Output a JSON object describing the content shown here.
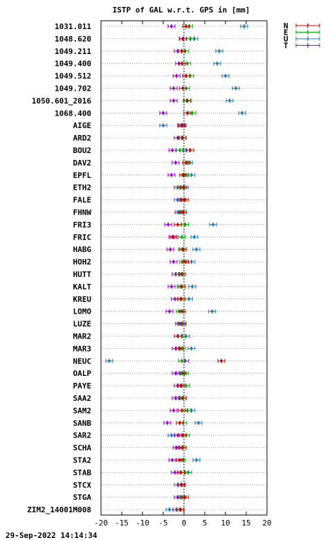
{
  "chart_data": {
    "type": "errorbar",
    "title": "ISTP of GAL w.r.t. GPS in [mm]",
    "timestamp": "29-Sep-2022 14:14:34",
    "xlim": [
      -20,
      20
    ],
    "xticks": [
      -20,
      -15,
      -10,
      -5,
      0,
      5,
      10,
      15,
      20
    ],
    "grid": "horizontal-dotted",
    "legend_position": "top-right",
    "series": [
      {
        "name": "N",
        "color": "#cc0000"
      },
      {
        "name": "E",
        "color": "#00aa00"
      },
      {
        "name": "U",
        "color": "#1f77b4"
      },
      {
        "name": "T",
        "color": "#9900cc"
      }
    ],
    "stations": [
      {
        "name": "1031.011",
        "N": 0.5,
        "E": 1.2,
        "U": 14.5,
        "T": -3.0
      },
      {
        "name": "1048.620",
        "N": -0.3,
        "E": 1.5,
        "U": 2.5,
        "T": -0.2
      },
      {
        "name": "1049.211",
        "N": -0.5,
        "E": 0.3,
        "U": 8.5,
        "T": -1.5
      },
      {
        "name": "1049.400",
        "N": -0.5,
        "E": 0.8,
        "U": 8.0,
        "T": -1.2
      },
      {
        "name": "1049.512",
        "N": 0.5,
        "E": 1.5,
        "U": 10.0,
        "T": -1.8
      },
      {
        "name": "1049.702",
        "N": -0.3,
        "E": 0.5,
        "U": 12.5,
        "T": -2.5
      },
      {
        "name": "1050.601_2016",
        "N": 0.7,
        "E": 0.9,
        "U": 11.0,
        "T": -2.5
      },
      {
        "name": "1068.400",
        "N": 0.8,
        "E": 2.0,
        "U": 14.0,
        "T": -5.0
      },
      {
        "name": "AIGE",
        "N": -0.5,
        "E": -0.3,
        "U": -5.0,
        "T": -0.7
      },
      {
        "name": "ARD2",
        "N": -0.3,
        "E": -0.4,
        "U": -1.5,
        "T": -1.5
      },
      {
        "name": "BOU2",
        "N": 1.5,
        "E": -1.0,
        "U": 0.5,
        "T": -2.8
      },
      {
        "name": "DAV2",
        "N": 0.5,
        "E": 0.8,
        "U": 1.2,
        "T": -2.0
      },
      {
        "name": "EPFL",
        "N": -0.2,
        "E": 0.3,
        "U": 1.8,
        "T": -3.0
      },
      {
        "name": "ETH2",
        "N": -0.2,
        "E": -0.8,
        "U": 0.2,
        "T": -1.5
      },
      {
        "name": "FALE",
        "N": 0.2,
        "E": -0.3,
        "U": -1.5,
        "T": -0.8
      },
      {
        "name": "FHNW",
        "N": -0.2,
        "E": -0.5,
        "U": -0.8,
        "T": -1.3
      },
      {
        "name": "FRI3",
        "N": -1.5,
        "E": 0.3,
        "U": 7.0,
        "T": -3.8
      },
      {
        "name": "FRIC",
        "N": -2.5,
        "E": -0.5,
        "U": 2.5,
        "T": -2.8
      },
      {
        "name": "HABG",
        "N": -0.2,
        "E": -0.5,
        "U": 3.0,
        "T": -3.3
      },
      {
        "name": "HOH2",
        "N": 0.3,
        "E": -0.2,
        "U": 1.8,
        "T": -2.5
      },
      {
        "name": "HUTT",
        "N": -0.5,
        "E": -1.0,
        "U": -0.5,
        "T": -2.0
      },
      {
        "name": "KALT",
        "N": -0.5,
        "E": -0.8,
        "U": 2.0,
        "T": -3.0
      },
      {
        "name": "KREU",
        "N": -0.8,
        "E": -0.5,
        "U": 1.2,
        "T": -2.2
      },
      {
        "name": "LOMO",
        "N": -0.5,
        "E": -1.0,
        "U": 6.8,
        "T": -3.5
      },
      {
        "name": "LUZE",
        "N": -0.5,
        "E": -0.3,
        "U": -0.8,
        "T": -1.2
      },
      {
        "name": "MAR2",
        "N": -1.5,
        "E": -0.5,
        "U": 0.5,
        "T": -1.5
      },
      {
        "name": "MAR3",
        "N": -1.0,
        "E": -0.5,
        "U": 1.8,
        "T": -2.0
      },
      {
        "name": "NEUC",
        "N": 9.0,
        "E": -0.5,
        "U": -18.0,
        "T": 0.3
      },
      {
        "name": "OALP",
        "N": -0.3,
        "E": 0.2,
        "U": -0.8,
        "T": -2.0
      },
      {
        "name": "PAYE",
        "N": -0.8,
        "E": 0.5,
        "U": -0.5,
        "T": -1.5
      },
      {
        "name": "SAA2",
        "N": -0.2,
        "E": -0.5,
        "U": -1.0,
        "T": -2.0
      },
      {
        "name": "SAM2",
        "N": -0.5,
        "E": 0.8,
        "U": 1.8,
        "T": -2.5
      },
      {
        "name": "SANB",
        "N": -1.0,
        "E": -0.2,
        "U": 3.5,
        "T": -4.0
      },
      {
        "name": "SAR2",
        "N": -0.3,
        "E": 0.5,
        "U": -3.0,
        "T": -1.5
      },
      {
        "name": "SCHA",
        "N": -0.5,
        "E": -0.2,
        "U": -1.2,
        "T": -1.8
      },
      {
        "name": "STA2",
        "N": -1.0,
        "E": -0.5,
        "U": 3.0,
        "T": -2.8
      },
      {
        "name": "STAB",
        "N": -0.8,
        "E": 0.3,
        "U": 1.0,
        "T": -2.2
      },
      {
        "name": "STCX",
        "N": -0.5,
        "E": -0.5,
        "U": -1.5,
        "T": -0.7
      },
      {
        "name": "STGA",
        "N": 0.2,
        "E": -0.3,
        "U": -0.8,
        "T": -1.5
      },
      {
        "name": "ZIM2_14001M008",
        "N": -0.8,
        "E": -1.0,
        "U": -3.5,
        "T": -1.8
      }
    ]
  }
}
